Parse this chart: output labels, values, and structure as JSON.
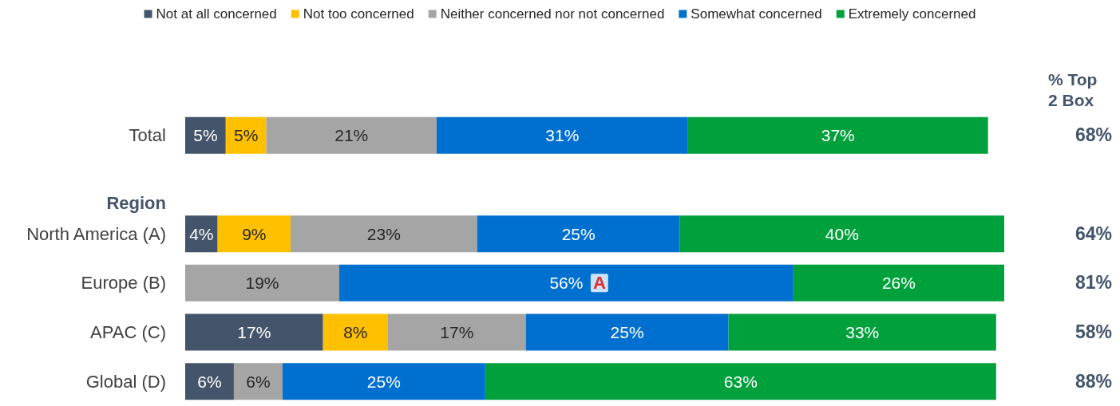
{
  "chart_data": {
    "type": "bar",
    "orientation": "horizontal",
    "stacked": true,
    "categories": [
      "Total",
      "Region",
      "North America (A)",
      "Europe (B)",
      "APAC (C)",
      "Global (D)"
    ],
    "series": [
      {
        "name": "Not at all concerned",
        "color": "#44546a",
        "values": [
          5,
          null,
          4,
          null,
          17,
          6
        ],
        "value_labels": [
          "5%",
          null,
          "4%",
          null,
          "17%",
          "6%"
        ]
      },
      {
        "name": "Not too concerned",
        "color": "#ffc000",
        "values": [
          5,
          null,
          9,
          null,
          8,
          null
        ],
        "value_labels": [
          "5%",
          null,
          "9%",
          null,
          "8%",
          null
        ]
      },
      {
        "name": "Neither concerned nor not concerned",
        "color": "#a5a5a5",
        "values": [
          21,
          null,
          23,
          19,
          17,
          6
        ],
        "value_labels": [
          "21%",
          null,
          "23%",
          "19%",
          "17%",
          "6%"
        ]
      },
      {
        "name": "Somewhat concerned",
        "color": "#0070d0",
        "values": [
          31,
          null,
          25,
          56,
          25,
          25
        ],
        "value_labels": [
          "31%",
          null,
          "25%",
          "56%",
          "25%",
          "25%"
        ]
      },
      {
        "name": "Extremely concerned",
        "color": "#00a03c",
        "values": [
          37,
          null,
          40,
          26,
          33,
          63
        ],
        "value_labels": [
          "37%",
          null,
          "40%",
          "26%",
          "33%",
          "63%"
        ]
      }
    ],
    "annotations": [
      {
        "text": "A",
        "x": 50,
        "y": "Europe (B)"
      },
      "% Top 2 Box",
      "68%",
      "64%",
      "81%",
      "58%",
      "88%"
    ],
    "legend": "top"
  }
}
